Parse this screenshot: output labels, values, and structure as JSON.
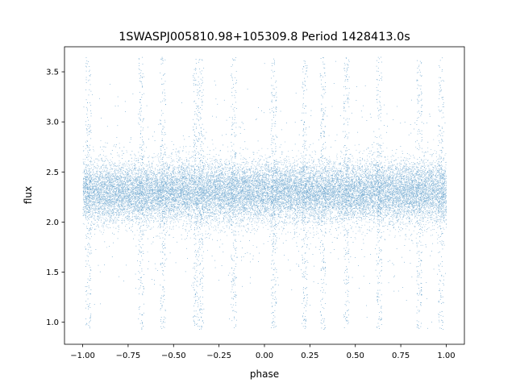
{
  "chart_data": {
    "type": "scatter",
    "title": "1SWASPJ005810.98+105309.8 Period 1428413.0s",
    "xlabel": "phase",
    "ylabel": "flux",
    "xlim": [
      -1.1,
      1.1
    ],
    "ylim": [
      0.78,
      3.75
    ],
    "xticks": [
      -1.0,
      -0.75,
      -0.5,
      -0.25,
      0.0,
      0.25,
      0.5,
      0.75,
      1.0
    ],
    "xtick_labels": [
      "−1.00",
      "−0.75",
      "−0.50",
      "−0.25",
      "0.00",
      "0.25",
      "0.50",
      "0.75",
      "1.00"
    ],
    "yticks": [
      1.0,
      1.5,
      2.0,
      2.5,
      3.0,
      3.5
    ],
    "ytick_labels": [
      "1.0",
      "1.5",
      "2.0",
      "2.5",
      "3.0",
      "3.5"
    ],
    "grid": false,
    "marker_color": "#1f77b4",
    "series": [
      {
        "phase_range": [
          -1.0,
          1.0
        ],
        "flux_median": 2.3,
        "flux_core_range": [
          2.0,
          2.6
        ],
        "flux_full_range": [
          0.93,
          3.65
        ],
        "approx_point_count": 60000,
        "dense_vertical_streaks_at_phase": [
          -0.97,
          -0.68,
          -0.56,
          -0.38,
          -0.35,
          -0.17,
          0.05,
          0.22,
          0.32,
          0.45,
          0.63,
          0.85,
          0.97
        ]
      }
    ]
  }
}
